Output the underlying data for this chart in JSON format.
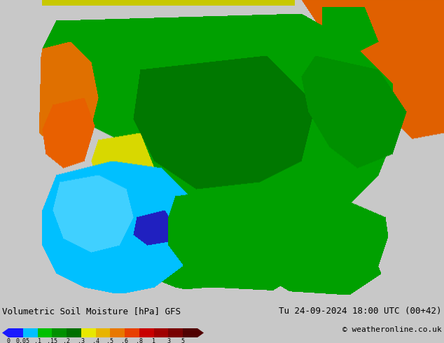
{
  "title_left": "Volumetric Soil Moisture [hPa] GFS",
  "title_right": "Tu 24-09-2024 18:00 UTC (00+42)",
  "copyright": "© weatheronline.co.uk",
  "colorbar_labels": [
    "0",
    "0.05",
    ".1",
    ".15",
    ".2",
    ".3",
    ".4",
    ".5",
    ".6",
    ".8",
    "1",
    "3",
    "5"
  ],
  "colorbar_colors": [
    "#1a1aff",
    "#00bfff",
    "#00c000",
    "#009000",
    "#007000",
    "#e8e800",
    "#e8b400",
    "#e87800",
    "#e84000",
    "#c80000",
    "#a00000",
    "#780000",
    "#500000"
  ],
  "background_color": "#c8c8c8",
  "bottom_bar_color": "#e0e0e0",
  "text_color": "#000000",
  "map_bg": "#c8c8c8",
  "ocean_color": "#c8c8c8",
  "land_base": "#c8c8c8",
  "top_strip_color": "#c8c800",
  "regions": {
    "orange_top_right": "#e86000",
    "green_canada": "#00a000",
    "cyan_west": "#00c0ff",
    "blue_spot": "#2020c0",
    "orange_coast": "#e87000",
    "yellow_top": "#e8e800",
    "green_east": "#00a000"
  }
}
